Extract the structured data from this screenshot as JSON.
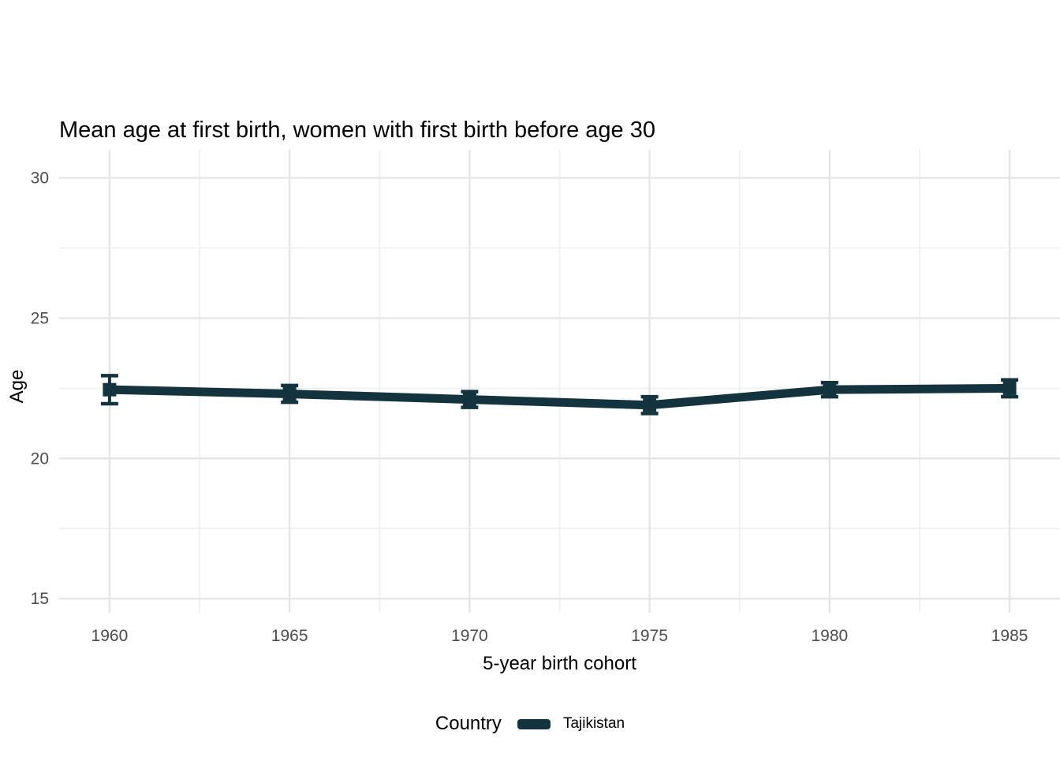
{
  "chart_data": {
    "type": "line",
    "title": "Mean age at first birth, women with first birth before age 30",
    "xlabel": "5-year birth cohort",
    "ylabel": "Age",
    "legend": {
      "title": "Country",
      "position": "bottom",
      "entries": [
        {
          "label": "Tajikistan",
          "color": "#13343f"
        }
      ]
    },
    "series": [
      {
        "name": "Tajikistan",
        "color": "#13343f",
        "marker": "square",
        "x": [
          1960,
          1965,
          1970,
          1975,
          1980,
          1985
        ],
        "y": [
          22.45,
          22.3,
          22.1,
          21.9,
          22.45,
          22.5
        ],
        "ymin": [
          21.95,
          22.0,
          21.82,
          21.6,
          22.2,
          22.2
        ],
        "ymax": [
          22.95,
          22.6,
          22.38,
          22.2,
          22.7,
          22.8
        ]
      }
    ],
    "x_ticks": [
      1960,
      1965,
      1970,
      1975,
      1980,
      1985
    ],
    "y_ticks": [
      15,
      20,
      25,
      30
    ],
    "xlim": [
      1958.6,
      1986.4
    ],
    "ylim": [
      14.5,
      31.0
    ],
    "grid": {
      "on": true,
      "minor_x": [
        1962.5,
        1967.5,
        1972.5,
        1977.5,
        1982.5
      ],
      "minor_y": [
        17.5,
        22.5,
        27.5
      ],
      "major_color": "#e5e5e5",
      "minor_color": "#f0f0f0"
    },
    "styles": {
      "tick_label_color": "#4d4d4d",
      "text_color": "#000000",
      "background": "#ffffff"
    }
  }
}
